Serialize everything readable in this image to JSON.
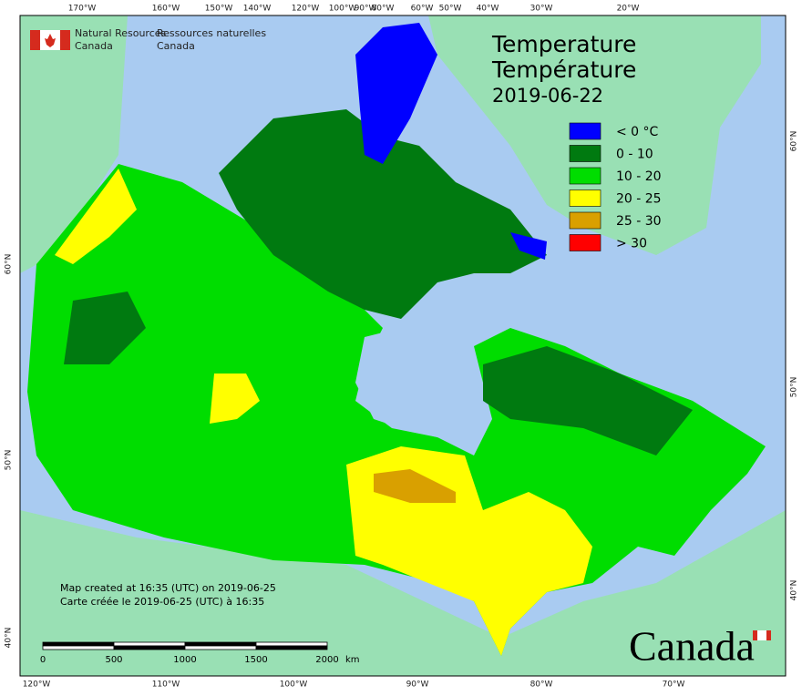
{
  "header": {
    "agency_en": [
      "Natural Resources",
      "Canada"
    ],
    "agency_fr": [
      "Ressources naturelles",
      "Canada"
    ]
  },
  "title": [
    "Temperature",
    "Température"
  ],
  "date": "2019-06-22",
  "legend": [
    {
      "label": "< 0 °C",
      "color": "#0000ff"
    },
    {
      "label": "0 - 10",
      "color": "#007a10"
    },
    {
      "label": "10 - 20",
      "color": "#00dd00"
    },
    {
      "label": "20 - 25",
      "color": "#ffff00"
    },
    {
      "label": "25 - 30",
      "color": "#d9a000"
    },
    {
      "label": "> 30",
      "color": "#ff0000"
    }
  ],
  "top_ticks": [
    "170°W",
    "160°W",
    "150°W",
    "140°W",
    "120°W",
    "100°W",
    "90°W",
    "80°W",
    "60°W",
    "50°W",
    "40°W",
    "30°W",
    "20°W"
  ],
  "bottom_ticks": [
    "120°W",
    "110°W",
    "100°W",
    "90°W",
    "80°W",
    "70°W"
  ],
  "left_ticks": [
    "60°N",
    "50°N",
    "40°N"
  ],
  "right_ticks": [
    "60°N",
    "50°N",
    "40°N"
  ],
  "notes": [
    "Map created at 16:35 (UTC) on 2019-06-25",
    "Carte créée le 2019-06-25 (UTC) à 16:35"
  ],
  "scale_bar": {
    "labels": [
      0,
      500,
      1000,
      1500,
      2000
    ],
    "unit": "km"
  },
  "wordmark": "Canada"
}
